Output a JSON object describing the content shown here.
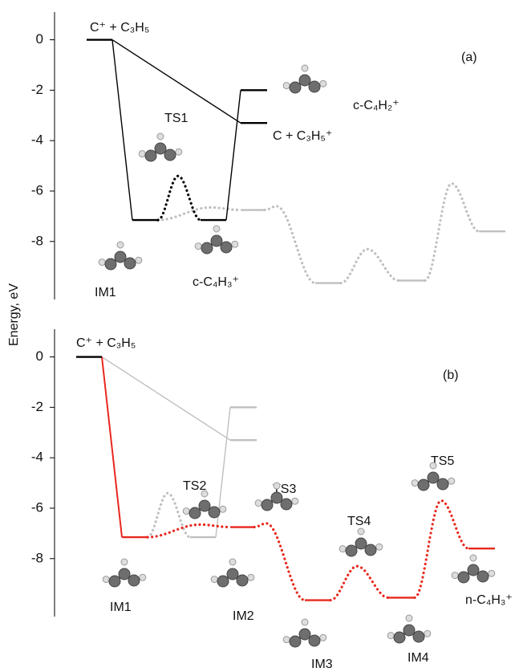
{
  "chart_data": [
    {
      "type": "energy-diagram",
      "panel_label": "(a)",
      "ylabel": "Energy, eV",
      "ylim": [
        -10.3,
        1.1
      ],
      "yticks": [
        0,
        -2,
        -4,
        -6,
        -8
      ],
      "points": [
        {
          "label": "C⁺ + C₃H₅",
          "energy": 0,
          "color": "#000000",
          "style": "level"
        },
        {
          "label": "IM1",
          "energy": -7.15,
          "color": "#000000",
          "style": "level"
        },
        {
          "label": "TS1",
          "energy": -5.4,
          "color": "#000000",
          "style": "ts"
        },
        {
          "label": "c-C₄H₃⁺",
          "energy": -7.15,
          "color": "#000000",
          "style": "level"
        },
        {
          "label": "c-C₄H₂⁺",
          "energy": -2.0,
          "color": "#000000",
          "style": "level"
        },
        {
          "label": "C + C₃H₅⁺",
          "energy": -3.3,
          "color": "#000000",
          "style": "level"
        },
        {
          "label": null,
          "energy": -6.65,
          "color": "#bfbfbf",
          "style": "ts"
        },
        {
          "label": null,
          "energy": -6.75,
          "color": "#bfbfbf",
          "style": "level"
        },
        {
          "label": null,
          "energy": -6.6,
          "color": "#bfbfbf",
          "style": "ts"
        },
        {
          "label": null,
          "energy": -9.65,
          "color": "#bfbfbf",
          "style": "level"
        },
        {
          "label": null,
          "energy": -8.3,
          "color": "#bfbfbf",
          "style": "ts"
        },
        {
          "label": null,
          "energy": -9.55,
          "color": "#bfbfbf",
          "style": "level"
        },
        {
          "label": null,
          "energy": -5.7,
          "color": "#bfbfbf",
          "style": "ts"
        },
        {
          "label": null,
          "energy": -7.6,
          "color": "#bfbfbf",
          "style": "level"
        }
      ]
    },
    {
      "type": "energy-diagram",
      "panel_label": "(b)",
      "ylim": [
        -10.3,
        1.1
      ],
      "yticks": [
        0,
        -2,
        -4,
        -6,
        -8
      ],
      "points": [
        {
          "label": "C⁺ + C₃H₅",
          "energy": 0,
          "color": "#000000",
          "style": "level"
        },
        {
          "label": "IM1",
          "energy": -7.15,
          "color": "#e8281e",
          "style": "level"
        },
        {
          "label": null,
          "energy": -5.4,
          "color": "#bfbfbf",
          "style": "ts"
        },
        {
          "label": null,
          "energy": -7.15,
          "color": "#bfbfbf",
          "style": "level"
        },
        {
          "label": null,
          "energy": -2.0,
          "color": "#bfbfbf",
          "style": "level"
        },
        {
          "label": null,
          "energy": -3.3,
          "color": "#bfbfbf",
          "style": "level"
        },
        {
          "label": "TS2",
          "energy": -6.65,
          "color": "#e8281e",
          "style": "ts"
        },
        {
          "label": "IM2",
          "energy": -6.75,
          "color": "#e8281e",
          "style": "level"
        },
        {
          "label": "TS3",
          "energy": -6.6,
          "color": "#e8281e",
          "style": "ts"
        },
        {
          "label": "IM3",
          "energy": -9.65,
          "color": "#e8281e",
          "style": "level"
        },
        {
          "label": "TS4",
          "energy": -8.3,
          "color": "#e8281e",
          "style": "ts"
        },
        {
          "label": "IM4",
          "energy": -9.55,
          "color": "#e8281e",
          "style": "level"
        },
        {
          "label": "TS5",
          "energy": -5.7,
          "color": "#e8281e",
          "style": "ts"
        },
        {
          "label": "n-C₄H₃⁺",
          "energy": -7.6,
          "color": "#e8281e",
          "style": "level"
        }
      ]
    }
  ]
}
